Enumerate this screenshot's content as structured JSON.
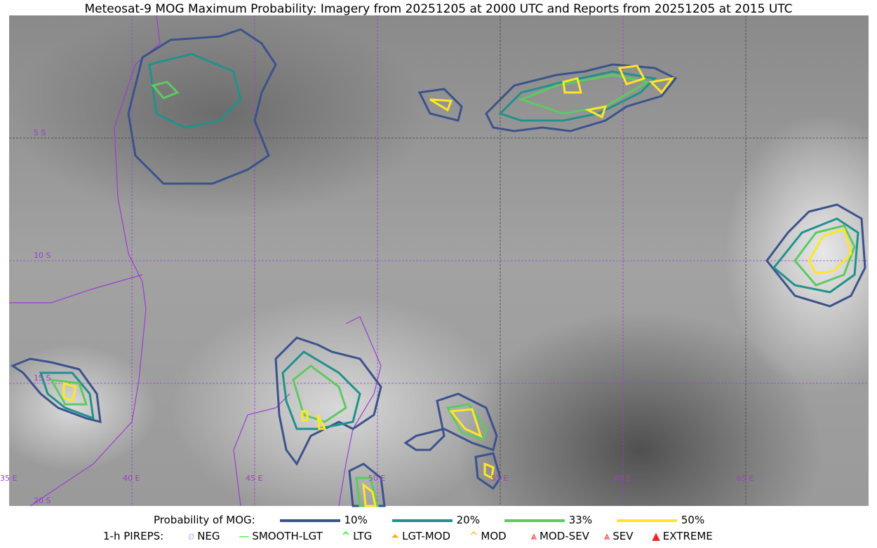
{
  "title": "Meteosat-9 MOG Maximum Probability: Imagery from 20251205 at 2000 UTC and Reports from 20251205 at 2015 UTC",
  "map": {
    "lon_labels": [
      "35 E",
      "40 E",
      "45 E",
      "50 E",
      "55 E",
      "60 E",
      "65 E"
    ],
    "lat_labels": [
      "5 S",
      "10 S",
      "15 S",
      "20 S"
    ],
    "grid_color": "#9a3fd0"
  },
  "legend": {
    "prob_label": "Probability of MOG:",
    "levels": [
      {
        "label": "10%",
        "color": "#3b528b"
      },
      {
        "label": "20%",
        "color": "#21918c"
      },
      {
        "label": "33%",
        "color": "#5ec962"
      },
      {
        "label": "50%",
        "color": "#fde725"
      }
    ],
    "pirep_label": "1-h PIREPS:",
    "pireps": [
      {
        "label": "NEG",
        "color": "#c8c8f0",
        "icon": "neg-icon"
      },
      {
        "label": "SMOOTH-LGT",
        "color": "#00ee00",
        "icon": "line-icon"
      },
      {
        "label": "LTG",
        "color": "#00ee00",
        "icon": "caret-icon"
      },
      {
        "label": "LGT-MOD",
        "color": "#f5b21f",
        "icon": "triangle-caret-icon"
      },
      {
        "label": "MOD",
        "color": "#f5b21f",
        "icon": "caret-icon"
      },
      {
        "label": "MOD-SEV",
        "color": "#ff2020",
        "icon": "double-caret-icon"
      },
      {
        "label": "SEV",
        "color": "#ff2020",
        "icon": "double-caret-icon"
      },
      {
        "label": "EXTREME",
        "color": "#ff2020",
        "icon": "filled-triangle-icon"
      }
    ]
  }
}
